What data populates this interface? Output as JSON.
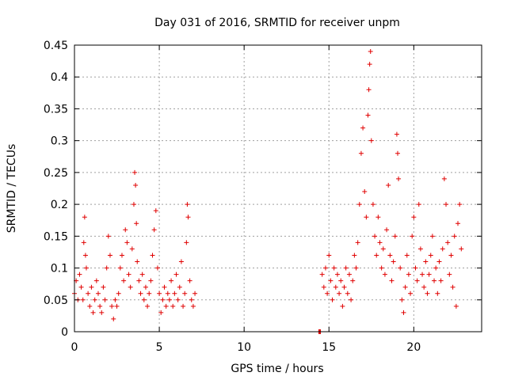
{
  "chart_data": {
    "type": "scatter",
    "title": "Day 031 of 2016, SRMTID for receiver unpm",
    "xlabel": "GPS time / hours",
    "ylabel": "SRMTID / TECUs",
    "xlim": [
      0,
      24
    ],
    "ylim": [
      0,
      0.45
    ],
    "xticks": [
      0,
      5,
      10,
      15,
      20
    ],
    "xtick_labels": [
      "0",
      "5",
      "10",
      "15",
      "20"
    ],
    "yticks": [
      0,
      0.05,
      0.1,
      0.15,
      0.2,
      0.25,
      0.3,
      0.35,
      0.4,
      0.45
    ],
    "ytick_labels": [
      "0",
      "0.05",
      "0.1",
      "0.15",
      "0.2",
      "0.25",
      "0.3",
      "0.35",
      "0.4",
      "0.45"
    ],
    "grid": true,
    "marker": "plus",
    "marker_color": "#e00000",
    "series": [
      {
        "name": "SRMTID",
        "points": [
          [
            0.0,
            0.06
          ],
          [
            0.1,
            0.08
          ],
          [
            0.2,
            0.05
          ],
          [
            0.3,
            0.09
          ],
          [
            0.4,
            0.07
          ],
          [
            0.5,
            0.05
          ],
          [
            0.55,
            0.14
          ],
          [
            0.6,
            0.18
          ],
          [
            0.65,
            0.12
          ],
          [
            0.7,
            0.1
          ],
          [
            0.8,
            0.06
          ],
          [
            0.9,
            0.04
          ],
          [
            1.0,
            0.07
          ],
          [
            1.1,
            0.03
          ],
          [
            1.2,
            0.05
          ],
          [
            1.3,
            0.08
          ],
          [
            1.4,
            0.06
          ],
          [
            1.5,
            0.04
          ],
          [
            1.6,
            0.03
          ],
          [
            1.7,
            0.07
          ],
          [
            1.8,
            0.05
          ],
          [
            1.9,
            0.1
          ],
          [
            2.0,
            0.15
          ],
          [
            2.1,
            0.12
          ],
          [
            2.2,
            0.04
          ],
          [
            2.3,
            0.02
          ],
          [
            2.4,
            0.05
          ],
          [
            2.5,
            0.04
          ],
          [
            2.6,
            0.06
          ],
          [
            2.7,
            0.1
          ],
          [
            2.8,
            0.12
          ],
          [
            2.9,
            0.08
          ],
          [
            3.0,
            0.16
          ],
          [
            3.1,
            0.14
          ],
          [
            3.2,
            0.09
          ],
          [
            3.3,
            0.07
          ],
          [
            3.4,
            0.13
          ],
          [
            3.5,
            0.2
          ],
          [
            3.55,
            0.25
          ],
          [
            3.6,
            0.23
          ],
          [
            3.65,
            0.17
          ],
          [
            3.7,
            0.11
          ],
          [
            3.8,
            0.08
          ],
          [
            3.9,
            0.06
          ],
          [
            4.0,
            0.09
          ],
          [
            4.1,
            0.05
          ],
          [
            4.2,
            0.07
          ],
          [
            4.3,
            0.04
          ],
          [
            4.4,
            0.06
          ],
          [
            4.5,
            0.08
          ],
          [
            4.6,
            0.12
          ],
          [
            4.7,
            0.16
          ],
          [
            4.8,
            0.19
          ],
          [
            4.9,
            0.1
          ],
          [
            5.0,
            0.06
          ],
          [
            5.1,
            0.03
          ],
          [
            5.2,
            0.05
          ],
          [
            5.3,
            0.07
          ],
          [
            5.4,
            0.04
          ],
          [
            5.5,
            0.06
          ],
          [
            5.6,
            0.05
          ],
          [
            5.7,
            0.08
          ],
          [
            5.8,
            0.04
          ],
          [
            5.9,
            0.06
          ],
          [
            6.0,
            0.09
          ],
          [
            6.1,
            0.05
          ],
          [
            6.2,
            0.07
          ],
          [
            6.3,
            0.11
          ],
          [
            6.4,
            0.04
          ],
          [
            6.5,
            0.06
          ],
          [
            6.6,
            0.14
          ],
          [
            6.65,
            0.2
          ],
          [
            6.7,
            0.18
          ],
          [
            6.8,
            0.08
          ],
          [
            6.9,
            0.05
          ],
          [
            7.0,
            0.04
          ],
          [
            7.1,
            0.06
          ],
          [
            14.4,
            0.0
          ],
          [
            14.45,
            0.0
          ],
          [
            14.5,
            0.0
          ],
          [
            14.6,
            0.09
          ],
          [
            14.7,
            0.07
          ],
          [
            14.8,
            0.1
          ],
          [
            14.9,
            0.06
          ],
          [
            15.0,
            0.12
          ],
          [
            15.1,
            0.08
          ],
          [
            15.2,
            0.05
          ],
          [
            15.3,
            0.1
          ],
          [
            15.4,
            0.07
          ],
          [
            15.5,
            0.09
          ],
          [
            15.6,
            0.06
          ],
          [
            15.7,
            0.08
          ],
          [
            15.8,
            0.04
          ],
          [
            15.9,
            0.07
          ],
          [
            16.0,
            0.1
          ],
          [
            16.1,
            0.06
          ],
          [
            16.2,
            0.09
          ],
          [
            16.3,
            0.05
          ],
          [
            16.4,
            0.08
          ],
          [
            16.5,
            0.12
          ],
          [
            16.6,
            0.1
          ],
          [
            16.7,
            0.14
          ],
          [
            16.8,
            0.2
          ],
          [
            16.9,
            0.28
          ],
          [
            17.0,
            0.32
          ],
          [
            17.1,
            0.22
          ],
          [
            17.2,
            0.18
          ],
          [
            17.3,
            0.34
          ],
          [
            17.35,
            0.38
          ],
          [
            17.4,
            0.42
          ],
          [
            17.45,
            0.44
          ],
          [
            17.5,
            0.3
          ],
          [
            17.6,
            0.2
          ],
          [
            17.7,
            0.15
          ],
          [
            17.8,
            0.12
          ],
          [
            17.9,
            0.18
          ],
          [
            18.0,
            0.14
          ],
          [
            18.1,
            0.1
          ],
          [
            18.2,
            0.13
          ],
          [
            18.3,
            0.09
          ],
          [
            18.4,
            0.16
          ],
          [
            18.5,
            0.23
          ],
          [
            18.6,
            0.12
          ],
          [
            18.7,
            0.08
          ],
          [
            18.8,
            0.11
          ],
          [
            18.9,
            0.15
          ],
          [
            19.0,
            0.31
          ],
          [
            19.05,
            0.28
          ],
          [
            19.1,
            0.24
          ],
          [
            19.2,
            0.1
          ],
          [
            19.3,
            0.05
          ],
          [
            19.4,
            0.03
          ],
          [
            19.5,
            0.07
          ],
          [
            19.6,
            0.12
          ],
          [
            19.7,
            0.09
          ],
          [
            19.8,
            0.06
          ],
          [
            19.9,
            0.15
          ],
          [
            20.0,
            0.18
          ],
          [
            20.1,
            0.1
          ],
          [
            20.2,
            0.08
          ],
          [
            20.3,
            0.2
          ],
          [
            20.4,
            0.13
          ],
          [
            20.5,
            0.09
          ],
          [
            20.6,
            0.07
          ],
          [
            20.7,
            0.11
          ],
          [
            20.8,
            0.06
          ],
          [
            20.9,
            0.09
          ],
          [
            21.0,
            0.12
          ],
          [
            21.1,
            0.15
          ],
          [
            21.2,
            0.08
          ],
          [
            21.3,
            0.1
          ],
          [
            21.4,
            0.06
          ],
          [
            21.5,
            0.11
          ],
          [
            21.6,
            0.08
          ],
          [
            21.7,
            0.13
          ],
          [
            21.8,
            0.24
          ],
          [
            21.9,
            0.2
          ],
          [
            22.0,
            0.14
          ],
          [
            22.1,
            0.09
          ],
          [
            22.2,
            0.12
          ],
          [
            22.3,
            0.07
          ],
          [
            22.4,
            0.15
          ],
          [
            22.5,
            0.04
          ],
          [
            22.6,
            0.17
          ],
          [
            22.7,
            0.2
          ],
          [
            22.8,
            0.13
          ]
        ]
      }
    ]
  }
}
